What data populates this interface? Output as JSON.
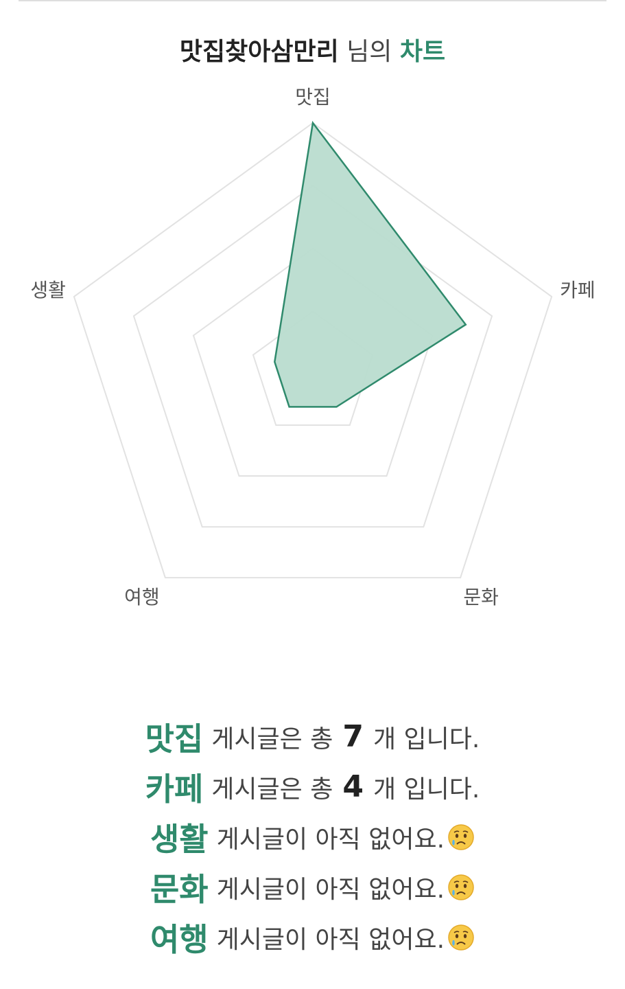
{
  "title": {
    "nickname": "맛집찾아삼만리",
    "suffix": " 님의 ",
    "accent": "차트"
  },
  "colors": {
    "accent": "#2f8a6c",
    "fill": "#b9dccf",
    "grid": "#e2e2e2"
  },
  "chart_data": {
    "type": "radar",
    "categories": [
      "맛집",
      "카페",
      "문화",
      "여행",
      "생활"
    ],
    "values": [
      7,
      4,
      0,
      0,
      0
    ],
    "grid_levels": 4,
    "rmax": 7
  },
  "summary": [
    {
      "category": "맛집",
      "parts": [
        "게시글은 총",
        "7",
        "개 입니다."
      ],
      "emoji": false
    },
    {
      "category": "카페",
      "parts": [
        "게시글은 총",
        "4",
        "개 입니다."
      ],
      "emoji": false
    },
    {
      "category": "생활",
      "parts": [
        "게시글이 아직 없어요.",
        "",
        ""
      ],
      "emoji": true
    },
    {
      "category": "문화",
      "parts": [
        "게시글이 아직 없어요.",
        "",
        ""
      ],
      "emoji": true
    },
    {
      "category": "여행",
      "parts": [
        "게시글이 아직 없어요.",
        "",
        ""
      ],
      "emoji": true
    }
  ],
  "emoji_name": "sad-tear-face-icon"
}
